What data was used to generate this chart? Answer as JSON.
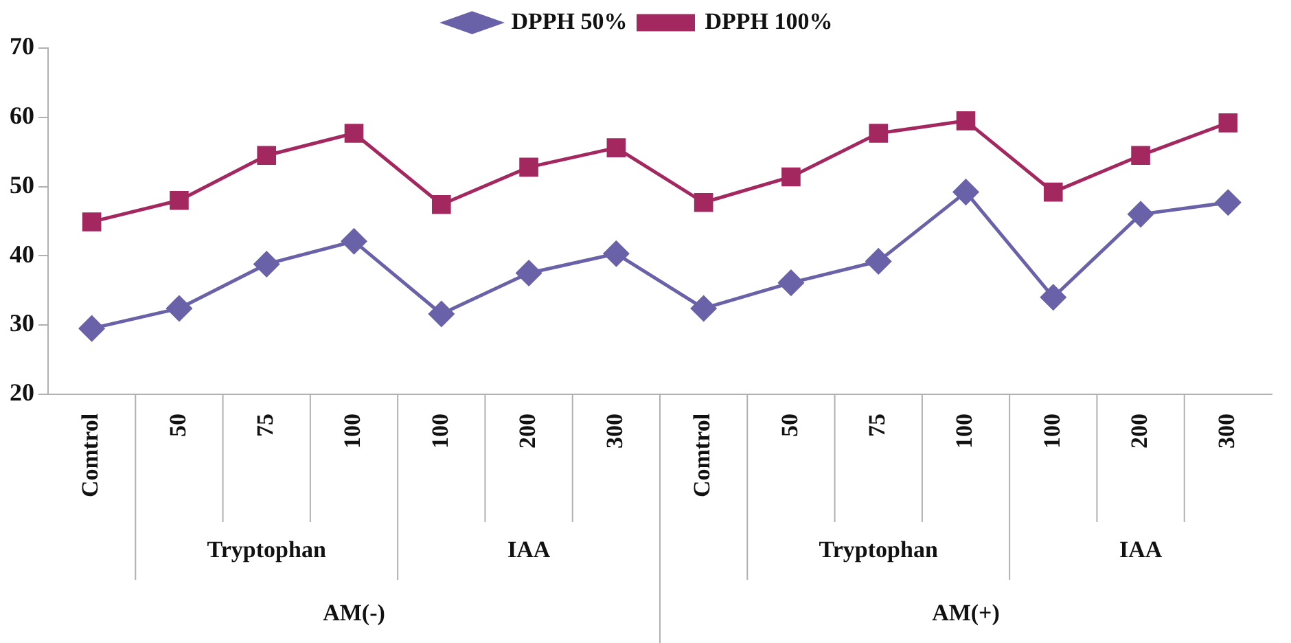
{
  "chart_data": {
    "type": "line",
    "categories": [
      "Comtrol",
      "50",
      "75",
      "100",
      "100",
      "200",
      "300",
      "Comtrol",
      "50",
      "75",
      "100",
      "100",
      "200",
      "300"
    ],
    "series": [
      {
        "name": "DPPH 50%",
        "color": "#6a62a8",
        "values": [
          29.5,
          32.4,
          38.8,
          42.1,
          31.6,
          37.5,
          40.3,
          32.4,
          36.1,
          39.2,
          49.2,
          34.0,
          46.0,
          47.7
        ]
      },
      {
        "name": "DPPH 100%",
        "color": "#a3285f",
        "marker": "square",
        "values": [
          44.9,
          48.0,
          54.5,
          57.7,
          47.4,
          52.8,
          55.6,
          47.7,
          51.4,
          57.7,
          59.5,
          49.2,
          54.5,
          59.2
        ]
      }
    ],
    "annotations": [
      "Tryptophan",
      "IAA",
      "Tryptophan",
      "IAA",
      "AM(-)",
      "AM(+)"
    ],
    "ylim": [
      20,
      70
    ],
    "yticks": [
      20,
      30,
      40,
      50,
      60,
      70
    ],
    "grid": false,
    "legend": "top",
    "marker": "diamond",
    "line_style": "solid"
  }
}
